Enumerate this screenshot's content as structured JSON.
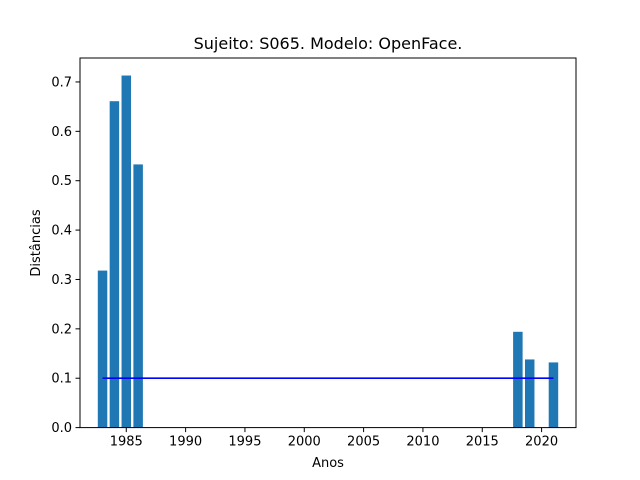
{
  "chart_data": {
    "type": "bar",
    "title": "Sujeito: S065. Modelo: OpenFace.",
    "xlabel": "Anos",
    "ylabel": "Distâncias",
    "x": [
      1983,
      1984,
      1985,
      1986,
      2018,
      2019,
      2021
    ],
    "values": [
      0.318,
      0.661,
      0.713,
      0.533,
      0.194,
      0.138,
      0.132
    ],
    "bar_color": "#1f77b4",
    "threshold": {
      "x_start": 1983,
      "x_end": 2021,
      "y": 0.1,
      "color": "#0000ff"
    },
    "xlim": [
      1981.1,
      2022.9
    ],
    "ylim": [
      0,
      0.7485
    ],
    "x_ticks": [
      1985,
      1990,
      1995,
      2000,
      2005,
      2010,
      2015,
      2020
    ],
    "y_ticks": [
      0.0,
      0.1,
      0.2,
      0.3,
      0.4,
      0.5,
      0.6,
      0.7
    ],
    "grid": false,
    "legend": "none"
  }
}
